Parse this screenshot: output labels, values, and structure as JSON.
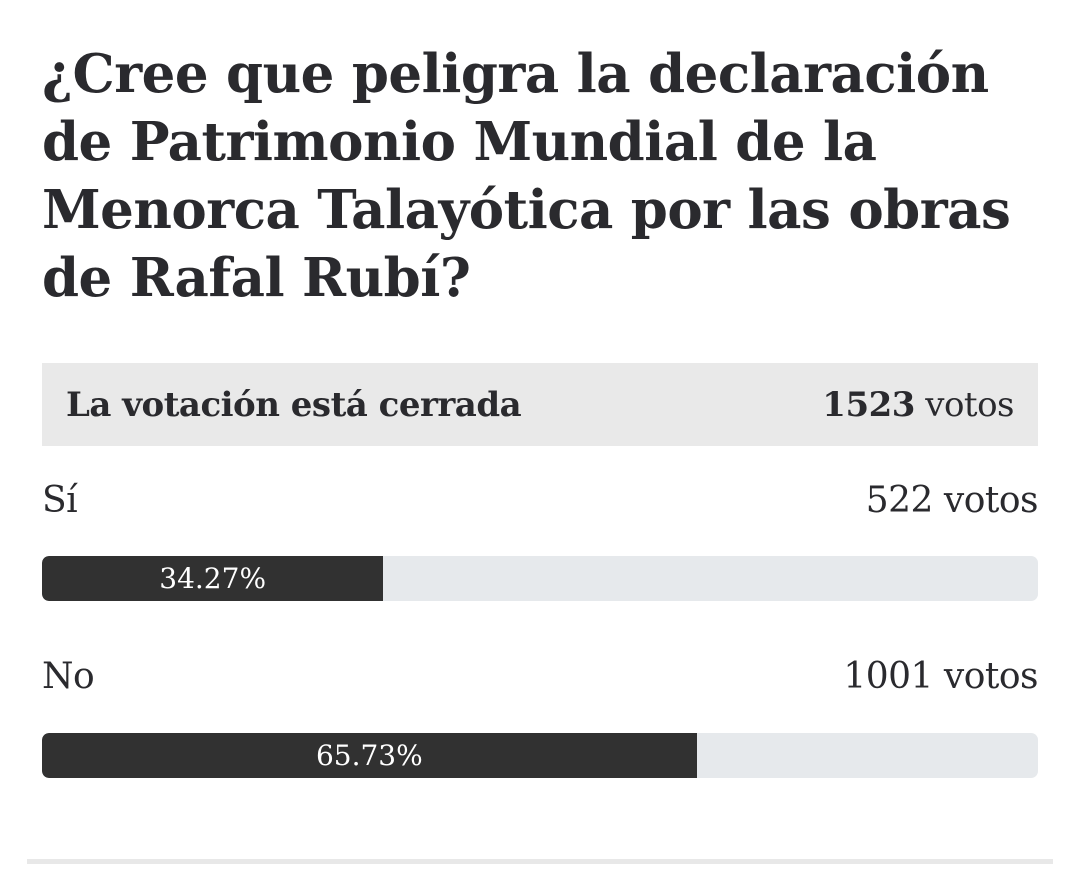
{
  "poll": {
    "question": "¿Cree que peligra la declaración de Patrimonio Mundial de la Menorca Talayótica por las obras de Rafal Rubí?",
    "status": "La votación está cerrada",
    "total_votes_number": "1523",
    "total_votes_unit": "votos",
    "options": [
      {
        "label": "Sí",
        "votes": "522 votos",
        "percent_text": "34.27%",
        "percent": 34.27
      },
      {
        "label": "No",
        "votes": "1001 votos",
        "percent_text": "65.73%",
        "percent": 65.73
      }
    ]
  },
  "colors": {
    "bar_fill": "#313131",
    "bar_track": "#e6e9ec",
    "status_background": "#e9e9e9",
    "text": "#2a2a2e"
  }
}
